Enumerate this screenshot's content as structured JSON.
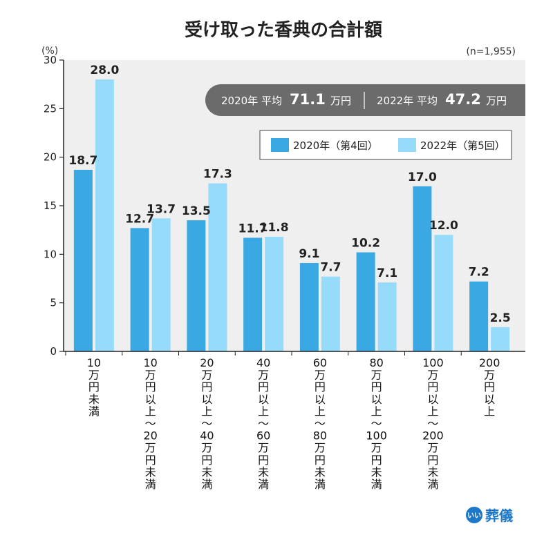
{
  "chart_data": {
    "type": "bar",
    "title": "受け取った香典の合計額",
    "y_unit": "(%)",
    "sample_note": "(n=1,955)",
    "ylim": [
      0,
      30
    ],
    "yticks": [
      0,
      5,
      10,
      15,
      20,
      25,
      30
    ],
    "categories": [
      [
        "10",
        "万",
        "円",
        "未",
        "満"
      ],
      [
        "10",
        "万",
        "円",
        "以",
        "上",
        "〜",
        "20",
        "万",
        "円",
        "未",
        "満"
      ],
      [
        "20",
        "万",
        "円",
        "以",
        "上",
        "〜",
        "40",
        "万",
        "円",
        "未",
        "満"
      ],
      [
        "40",
        "万",
        "円",
        "以",
        "上",
        "〜",
        "60",
        "万",
        "円",
        "未",
        "満"
      ],
      [
        "60",
        "万",
        "円",
        "以",
        "上",
        "〜",
        "80",
        "万",
        "円",
        "未",
        "満"
      ],
      [
        "80",
        "万",
        "円",
        "以",
        "上",
        "〜",
        "100",
        "万",
        "円",
        "未",
        "満"
      ],
      [
        "100",
        "万",
        "円",
        "以",
        "上",
        "〜",
        "200",
        "万",
        "円",
        "未",
        "満"
      ],
      [
        "200",
        "万",
        "円",
        "以",
        "上"
      ]
    ],
    "series": [
      {
        "name": "2020年（第4回）",
        "color": "#3aa9e3",
        "values": [
          18.7,
          12.7,
          13.5,
          11.7,
          9.1,
          10.2,
          17.0,
          7.2
        ],
        "labels": [
          "18.7",
          "12.7",
          "13.5",
          "11.7",
          "9.1",
          "10.2",
          "17.0",
          "7.2"
        ]
      },
      {
        "name": "2022年（第5回）",
        "color": "#96dcfa",
        "values": [
          28.0,
          13.7,
          17.3,
          11.8,
          7.7,
          7.1,
          12.0,
          2.5
        ],
        "labels": [
          "28.0",
          "13.7",
          "17.3",
          "11.8",
          "7.7",
          "7.1",
          "12.0",
          "2.5"
        ]
      }
    ],
    "averages": [
      {
        "label": "2020年 平均",
        "value": "71.1",
        "unit": "万円"
      },
      {
        "label": "2022年 平均",
        "value": "47.2",
        "unit": "万円"
      }
    ],
    "legend": {
      "placement": "top-right",
      "items": [
        {
          "label": "2020年（第4回）",
          "color": "#3aa9e3"
        },
        {
          "label": "2022年（第5回）",
          "color": "#96dcfa"
        }
      ]
    },
    "colors": {
      "plot_bg": "#efefef",
      "banner_bg": "#6b6b6b"
    }
  },
  "brand": {
    "circle_text": "いい",
    "name": "葬儀",
    "color": "#1e78c8"
  }
}
